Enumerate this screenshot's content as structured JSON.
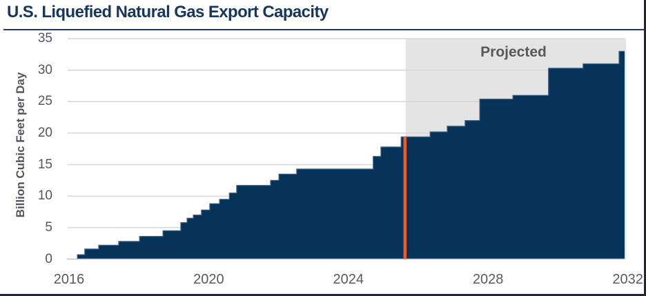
{
  "chart_data": {
    "type": "area",
    "step_style": "step-after",
    "title": "U.S. Liquefied Natural Gas Export Capacity",
    "ylabel": "Billion Cubic Feet per Day",
    "xlabel": "",
    "x_ticks": [
      2016,
      2020,
      2024,
      2028,
      2032
    ],
    "y_ticks": [
      0,
      5,
      10,
      15,
      20,
      25,
      30,
      35
    ],
    "xlim": [
      2015.94,
      2031.95
    ],
    "ylim": [
      0,
      35
    ],
    "grid": "horizontal",
    "legend": "none",
    "series": [
      {
        "name": "U.S. LNG export capacity",
        "type": "step-area",
        "color": "#05335a",
        "points": [
          [
            2016.24,
            0.7
          ],
          [
            2016.45,
            1.6
          ],
          [
            2016.85,
            2.2
          ],
          [
            2017.42,
            2.8
          ],
          [
            2018.02,
            3.6
          ],
          [
            2018.69,
            4.5
          ],
          [
            2019.2,
            5.8
          ],
          [
            2019.38,
            6.5
          ],
          [
            2019.56,
            7.0
          ],
          [
            2019.79,
            7.8
          ],
          [
            2020.03,
            8.8
          ],
          [
            2020.31,
            9.5
          ],
          [
            2020.59,
            10.5
          ],
          [
            2020.8,
            11.7
          ],
          [
            2021.77,
            12.5
          ],
          [
            2022.01,
            13.5
          ],
          [
            2022.52,
            14.3
          ],
          [
            2024.71,
            16.3
          ],
          [
            2024.93,
            17.8
          ],
          [
            2025.51,
            19.4
          ],
          [
            2026.34,
            20.2
          ],
          [
            2026.83,
            21.1
          ],
          [
            2027.34,
            22.0
          ],
          [
            2027.76,
            25.4
          ],
          [
            2028.71,
            26.0
          ],
          [
            2029.73,
            30.3
          ],
          [
            2030.72,
            31.0
          ],
          [
            2031.75,
            33.0
          ]
        ],
        "end_x": 2031.91
      }
    ],
    "annotations": {
      "projected_label": "Projected",
      "projected_region": {
        "x_start": 2025.64,
        "x_end": 2031.95
      },
      "current_marker": {
        "x": 2025.62
      }
    },
    "colors": {
      "area": "#05335a",
      "area_edge": "#3f6487",
      "projected_fill": "#e4e4e4",
      "current_marker": "#f15a24",
      "title": "#17365d",
      "title_rule": "#1f3864",
      "axis_text": "#53565c",
      "x_tick_text": "#58595b",
      "projected_text": "#58595b",
      "gridline": "#d6d6d6",
      "baseline": "#c2c2c2",
      "page_border": "#23233b"
    }
  }
}
